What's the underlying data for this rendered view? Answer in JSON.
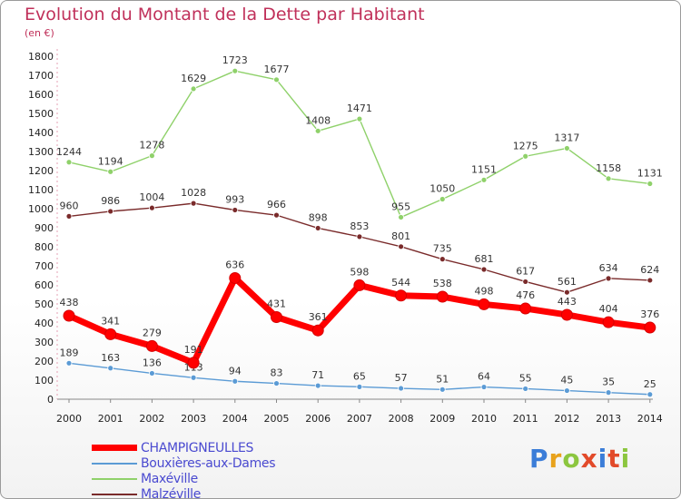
{
  "title": "Evolution du Montant de la Dette par Habitant",
  "unit_label": "(en €)",
  "logo_text": "Proxiti",
  "chart_data": {
    "type": "line",
    "title": "Evolution du Montant de la Dette par Habitant",
    "ylabel": "(en €)",
    "ylim": [
      0,
      1800
    ],
    "grid": false,
    "legend_position": "bottom-left",
    "x": [
      "2000",
      "2001",
      "2002",
      "2003",
      "2004",
      "2005",
      "2006",
      "2007",
      "2008",
      "2009",
      "2010",
      "2011",
      "2012",
      "2013",
      "2014"
    ],
    "yticks": [
      "0",
      "100",
      "200",
      "300",
      "400",
      "500",
      "600",
      "700",
      "800",
      "900",
      "1000",
      "1100",
      "1200",
      "1300",
      "1400",
      "1500",
      "1600",
      "1700",
      "1800"
    ],
    "series": [
      {
        "name": "CHAMPIGNEULLES",
        "color": "#ff0000",
        "values": [
          438,
          341,
          279,
          191,
          636,
          431,
          361,
          598,
          544,
          538,
          498,
          476,
          443,
          404,
          376
        ]
      },
      {
        "name": "Bouxières-aux-Dames",
        "color": "#5b9bd5",
        "values": [
          189,
          163,
          136,
          113,
          94,
          83,
          71,
          65,
          57,
          51,
          64,
          55,
          45,
          35,
          25
        ]
      },
      {
        "name": "Maxéville",
        "color": "#8fd16a",
        "values": [
          1244,
          1194,
          1278,
          1629,
          1723,
          1677,
          1408,
          1471,
          955,
          1050,
          1151,
          1275,
          1317,
          1158,
          1131
        ]
      },
      {
        "name": "Malzéville",
        "color": "#7a2b2b",
        "values": [
          960,
          986,
          1004,
          1028,
          993,
          966,
          898,
          853,
          801,
          735,
          681,
          617,
          561,
          634,
          624
        ]
      }
    ]
  }
}
